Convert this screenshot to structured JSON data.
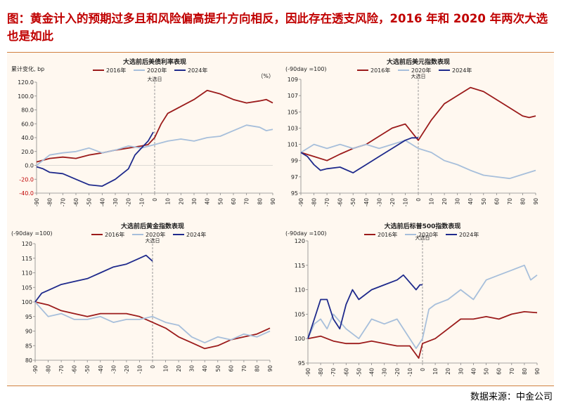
{
  "page": {
    "title": "图：黄金计入的预期过多且和风险偏高提升方向相反，因此存在透支风险，2016 年和 2020 年两次大选也是如此",
    "source": "数据来源：中金公司"
  },
  "colors": {
    "s2016": "#9b1b1b",
    "s2020": "#a7bfdb",
    "s2024": "#1f2a8c",
    "vline": "#999999",
    "accent": "#c00000"
  },
  "chart_data": [
    {
      "type": "line",
      "title": "大选前后美债利率表现",
      "yunit": "累计变化, bp",
      "right_unit": "（%）",
      "event_label": "大选日",
      "xlim": [
        -90,
        90
      ],
      "ylim": [
        -40,
        120
      ],
      "yticks": [
        -40,
        -20,
        0,
        20,
        40,
        60,
        80,
        100,
        120
      ],
      "ytick_labels": [
        "-40.0",
        "-20.0",
        "0.0",
        "20.0",
        "40.0",
        "60.0",
        "80.0",
        "100.0",
        "120.0"
      ],
      "xticks": [
        -90,
        -80,
        -70,
        -60,
        -50,
        -40,
        -30,
        -20,
        -10,
        0,
        10,
        20,
        30,
        40,
        50,
        60,
        70,
        80,
        90
      ],
      "series": [
        {
          "name": "2016年",
          "key": "s2016",
          "x": [
            -90,
            -80,
            -70,
            -60,
            -50,
            -40,
            -30,
            -20,
            -10,
            -5,
            0,
            5,
            10,
            20,
            30,
            40,
            50,
            60,
            70,
            80,
            85,
            90
          ],
          "values": [
            5,
            10,
            12,
            10,
            15,
            18,
            22,
            25,
            28,
            30,
            40,
            60,
            75,
            85,
            95,
            108,
            103,
            95,
            90,
            93,
            95,
            90
          ]
        },
        {
          "name": "2020年",
          "key": "s2020",
          "x": [
            -90,
            -80,
            -70,
            -60,
            -50,
            -40,
            -30,
            -20,
            -10,
            0,
            10,
            20,
            30,
            40,
            50,
            60,
            70,
            80,
            85,
            90
          ],
          "values": [
            0,
            15,
            18,
            20,
            25,
            18,
            22,
            28,
            25,
            30,
            35,
            38,
            35,
            40,
            42,
            50,
            58,
            55,
            50,
            52
          ]
        },
        {
          "name": "2024年",
          "key": "s2024",
          "x": [
            -90,
            -85,
            -80,
            -70,
            -60,
            -50,
            -40,
            -30,
            -20,
            -15,
            -10,
            -5,
            -1
          ],
          "values": [
            -2,
            -5,
            -10,
            -12,
            -20,
            -28,
            -30,
            -20,
            -5,
            15,
            25,
            35,
            48
          ]
        }
      ]
    },
    {
      "type": "line",
      "title": "大选前后美元指数表现",
      "yunit": "(-90day =100)",
      "event_label": "大选日",
      "xlim": [
        -90,
        90
      ],
      "ylim": [
        95,
        109
      ],
      "yticks": [
        95,
        97,
        99,
        101,
        103,
        105,
        107,
        109
      ],
      "ytick_labels": [
        "95",
        "97",
        "99",
        "101",
        "103",
        "105",
        "107",
        "109"
      ],
      "xticks": [
        -90,
        -80,
        -70,
        -60,
        -50,
        -40,
        -30,
        -20,
        -10,
        0,
        10,
        20,
        30,
        40,
        50,
        60,
        70,
        80,
        90
      ],
      "series": [
        {
          "name": "2016年",
          "key": "s2016",
          "x": [
            -90,
            -80,
            -70,
            -60,
            -50,
            -40,
            -30,
            -20,
            -10,
            -5,
            0,
            10,
            20,
            30,
            40,
            50,
            60,
            70,
            80,
            85,
            90
          ],
          "values": [
            100,
            99.5,
            99,
            99.8,
            100.5,
            101,
            102,
            103,
            103.5,
            102.5,
            101.5,
            104,
            106,
            107,
            108,
            107.5,
            106.5,
            105.5,
            104.5,
            104.3,
            104.5
          ]
        },
        {
          "name": "2020年",
          "key": "s2020",
          "x": [
            -90,
            -80,
            -70,
            -60,
            -50,
            -40,
            -30,
            -20,
            -10,
            0,
            10,
            20,
            30,
            40,
            50,
            60,
            70,
            80,
            90
          ],
          "values": [
            100,
            101,
            100.5,
            101,
            100.5,
            101,
            100.5,
            101,
            101.5,
            100.5,
            100,
            99,
            98.5,
            97.8,
            97.2,
            97,
            96.8,
            97.3,
            97.8
          ]
        },
        {
          "name": "2024年",
          "key": "s2024",
          "x": [
            -90,
            -85,
            -80,
            -75,
            -70,
            -60,
            -50,
            -40,
            -30,
            -20,
            -10,
            -5,
            0
          ],
          "values": [
            100,
            99.5,
            98.5,
            97.8,
            98,
            98.2,
            97.5,
            98.5,
            99.5,
            100.5,
            101.5,
            101.8,
            101.8
          ]
        }
      ]
    },
    {
      "type": "line",
      "title": "大选前后黄金指数表现",
      "yunit": "(-90day =100)",
      "event_label": "大选日",
      "xlim": [
        -90,
        90
      ],
      "ylim": [
        80,
        120
      ],
      "yticks": [
        80,
        85,
        90,
        95,
        100,
        105,
        110,
        115,
        120
      ],
      "ytick_labels": [
        "80",
        "85",
        "90",
        "95",
        "100",
        "105",
        "110",
        "115",
        "120"
      ],
      "xticks": [
        -90,
        -80,
        -70,
        -60,
        -50,
        -40,
        -30,
        -20,
        -10,
        0,
        10,
        20,
        30,
        40,
        50,
        60,
        70,
        80,
        90
      ],
      "series": [
        {
          "name": "2016年",
          "key": "s2016",
          "x": [
            -90,
            -80,
            -70,
            -60,
            -50,
            -40,
            -30,
            -20,
            -10,
            0,
            10,
            20,
            30,
            40,
            50,
            60,
            70,
            80,
            90
          ],
          "values": [
            100,
            99,
            97,
            96,
            95,
            96,
            96,
            96,
            95,
            93,
            91,
            88,
            86,
            84,
            85,
            87,
            88,
            89,
            91
          ]
        },
        {
          "name": "2020年",
          "key": "s2020",
          "x": [
            -90,
            -80,
            -70,
            -60,
            -50,
            -40,
            -30,
            -20,
            -10,
            0,
            10,
            20,
            30,
            40,
            50,
            60,
            70,
            80,
            90
          ],
          "values": [
            100,
            95,
            96,
            94,
            94,
            95,
            93,
            94,
            94,
            95,
            93,
            92,
            88,
            86,
            88,
            87,
            89,
            88,
            90
          ]
        },
        {
          "name": "2024年",
          "key": "s2024",
          "x": [
            -90,
            -85,
            -80,
            -70,
            -60,
            -50,
            -40,
            -30,
            -20,
            -10,
            -5,
            0
          ],
          "values": [
            100,
            103,
            104,
            106,
            107,
            108,
            110,
            112,
            113,
            115,
            116,
            114
          ]
        }
      ]
    },
    {
      "type": "line",
      "title": "大选前后标普500指数表现",
      "yunit": "(-90day =100)",
      "event_label": "大选日",
      "xlim": [
        -90,
        90
      ],
      "ylim": [
        95,
        120
      ],
      "yticks": [
        95,
        100,
        105,
        110,
        115,
        120
      ],
      "ytick_labels": [
        "95",
        "100",
        "105",
        "110",
        "115",
        "120"
      ],
      "xticks": [
        -90,
        -80,
        -70,
        -60,
        -50,
        -40,
        -30,
        -20,
        -10,
        0,
        10,
        20,
        30,
        40,
        50,
        60,
        70,
        80,
        90
      ],
      "series": [
        {
          "name": "2016年",
          "key": "s2016",
          "x": [
            -90,
            -80,
            -70,
            -60,
            -50,
            -40,
            -30,
            -20,
            -10,
            -3,
            0,
            10,
            20,
            30,
            40,
            50,
            60,
            70,
            80,
            90
          ],
          "values": [
            100,
            100.5,
            99.5,
            99,
            99,
            99.5,
            99,
            98.5,
            98.5,
            96,
            99,
            100,
            102,
            104,
            104,
            104.5,
            104,
            105,
            105.5,
            105.3
          ]
        },
        {
          "name": "2020年",
          "key": "s2020",
          "x": [
            -90,
            -85,
            -80,
            -75,
            -70,
            -60,
            -50,
            -40,
            -30,
            -20,
            -10,
            -5,
            0,
            5,
            10,
            20,
            30,
            40,
            50,
            60,
            70,
            80,
            85,
            90
          ],
          "values": [
            100,
            103,
            104,
            102,
            105,
            102,
            100,
            104,
            103,
            104,
            100,
            98,
            100,
            106,
            107,
            108,
            110,
            108,
            112,
            113,
            114,
            115,
            112,
            113
          ]
        },
        {
          "name": "2024年",
          "key": "s2024",
          "x": [
            -90,
            -85,
            -80,
            -75,
            -70,
            -65,
            -60,
            -55,
            -50,
            -40,
            -30,
            -20,
            -15,
            -10,
            -5,
            -2,
            0
          ],
          "values": [
            100,
            104,
            108,
            108,
            104,
            102,
            107,
            110,
            108,
            110,
            111,
            112,
            113,
            111.5,
            110,
            111,
            111
          ]
        }
      ]
    }
  ]
}
